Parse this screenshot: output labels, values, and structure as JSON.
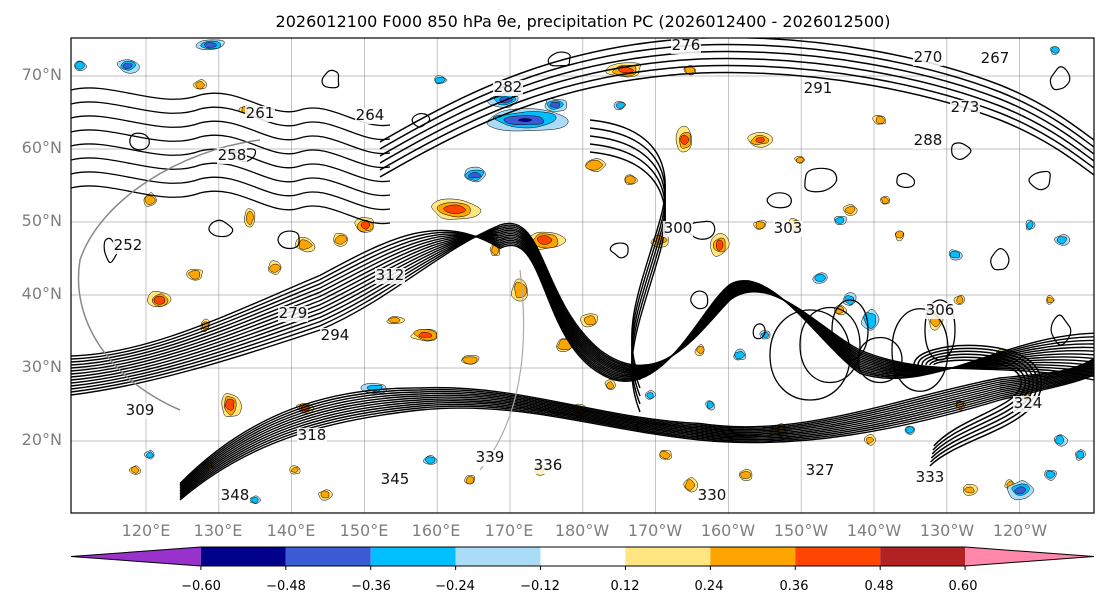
{
  "title": "2026012100 F000 850 hPa θe, precipitation PC (2026012400 - 2026012500)",
  "map": {
    "lat_labels": [
      "70°N",
      "60°N",
      "50°N",
      "40°N",
      "30°N",
      "20°N"
    ],
    "lon_labels": [
      "120°E",
      "130°E",
      "140°E",
      "150°E",
      "160°E",
      "170°E",
      "180°W",
      "170°W",
      "160°W",
      "150°W",
      "140°W",
      "130°W",
      "120°W"
    ],
    "contour_labels": [
      "276",
      "270",
      "267",
      "273",
      "261",
      "264",
      "282",
      "291",
      "288",
      "300",
      "303",
      "306",
      "309",
      "312",
      "318",
      "324",
      "327",
      "330",
      "333",
      "336",
      "339",
      "345",
      "348",
      "294",
      "279",
      "252",
      "258"
    ]
  },
  "colorbar": {
    "tick_labels": [
      "−0.60",
      "−0.48",
      "−0.36",
      "−0.24",
      "−0.12",
      "0.12",
      "0.24",
      "0.36",
      "0.48",
      "0.60"
    ],
    "bins": [
      {
        "color": "#9932cc",
        "range": "< -0.60"
      },
      {
        "color": "#00008b",
        "range": "-0.60 to -0.48"
      },
      {
        "color": "#3b5bd6",
        "range": "-0.48 to -0.36"
      },
      {
        "color": "#00bfff",
        "range": "-0.36 to -0.24"
      },
      {
        "color": "#aadcf7",
        "range": "-0.24 to -0.12"
      },
      {
        "color": "#ffffff",
        "range": "-0.12 to 0.12"
      },
      {
        "color": "#ffe680",
        "range": "0.12 to 0.24"
      },
      {
        "color": "#ffa500",
        "range": "0.24 to 0.36"
      },
      {
        "color": "#ff4500",
        "range": "0.36 to 0.48"
      },
      {
        "color": "#b22222",
        "range": "0.48 to 0.60"
      },
      {
        "color": "#ff88aa",
        "range": "> 0.60"
      }
    ]
  }
}
